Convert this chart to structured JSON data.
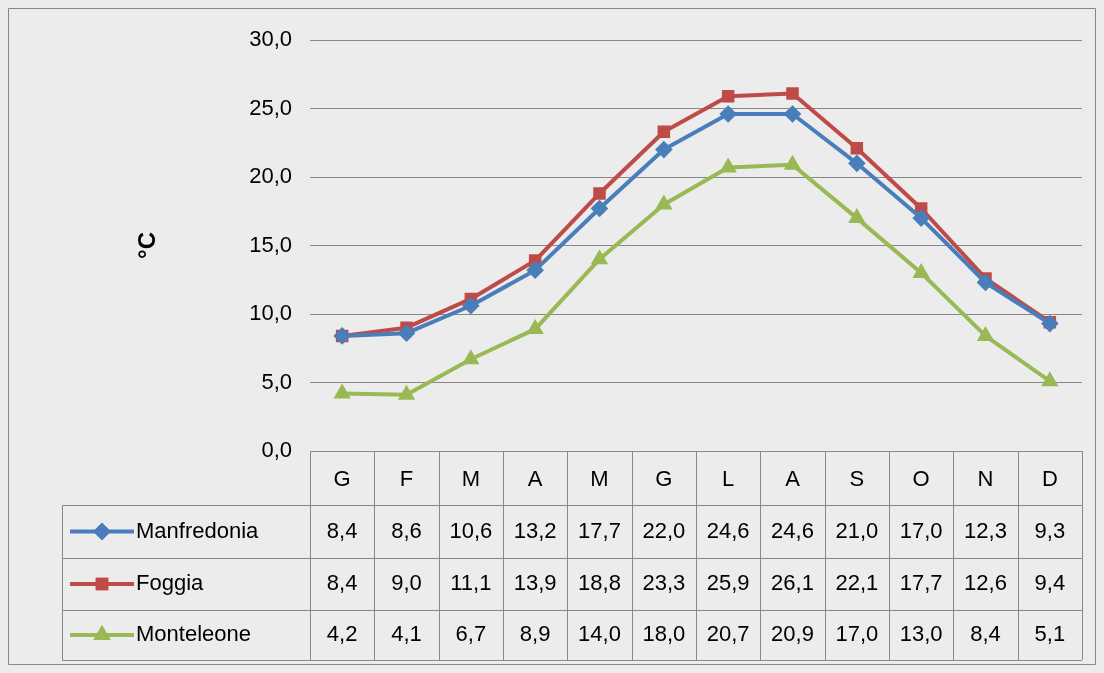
{
  "chart_data": {
    "type": "line",
    "ylabel": "°C",
    "categories": [
      "G",
      "F",
      "M",
      "A",
      "M",
      "G",
      "L",
      "A",
      "S",
      "O",
      "N",
      "D"
    ],
    "ylim": [
      0,
      30
    ],
    "yticks": [
      {
        "value": 0,
        "label": "0,0"
      },
      {
        "value": 5,
        "label": "5,0"
      },
      {
        "value": 10,
        "label": "10,0"
      },
      {
        "value": 15,
        "label": "15,0"
      },
      {
        "value": 20,
        "label": "20,0"
      },
      {
        "value": 25,
        "label": "25,0"
      },
      {
        "value": 30,
        "label": "30,0"
      }
    ],
    "grid": "y",
    "legend": "bottom",
    "line_style": "solid",
    "series": [
      {
        "name": "Manfredonia",
        "color": "#4a7ebb",
        "marker": "diamond",
        "values": [
          8.4,
          8.6,
          10.6,
          13.2,
          17.7,
          22.0,
          24.6,
          24.6,
          21.0,
          17.0,
          12.3,
          9.3
        ],
        "value_labels": [
          "8,4",
          "8,6",
          "10,6",
          "13,2",
          "17,7",
          "22,0",
          "24,6",
          "24,6",
          "21,0",
          "17,0",
          "12,3",
          "9,3"
        ]
      },
      {
        "name": "Foggia",
        "color": "#be4b48",
        "marker": "square",
        "values": [
          8.4,
          9.0,
          11.1,
          13.9,
          18.8,
          23.3,
          25.9,
          26.1,
          22.1,
          17.7,
          12.6,
          9.4
        ],
        "value_labels": [
          "8,4",
          "9,0",
          "11,1",
          "13,9",
          "18,8",
          "23,3",
          "25,9",
          "26,1",
          "22,1",
          "17,7",
          "12,6",
          "9,4"
        ]
      },
      {
        "name": "Monteleone",
        "color": "#98b954",
        "marker": "triangle",
        "values": [
          4.2,
          4.1,
          6.7,
          8.9,
          14.0,
          18.0,
          20.7,
          20.9,
          17.0,
          13.0,
          8.4,
          5.1
        ],
        "value_labels": [
          "4,2",
          "4,1",
          "6,7",
          "8,9",
          "14,0",
          "18,0",
          "20,7",
          "20,9",
          "17,0",
          "13,0",
          "8,4",
          "5,1"
        ]
      }
    ]
  }
}
